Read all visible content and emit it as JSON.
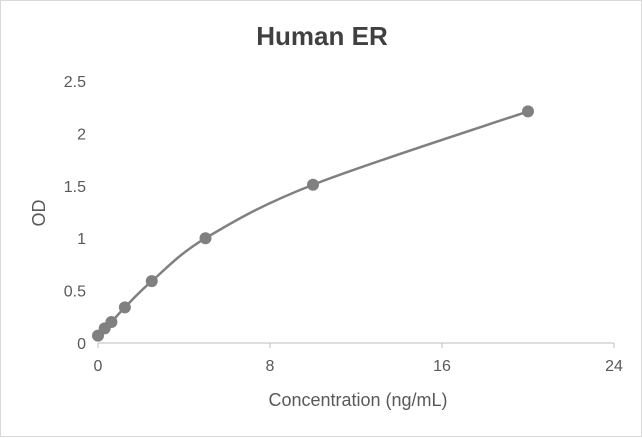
{
  "chart_data": {
    "type": "scatter",
    "title": "Human ER",
    "xlabel": "Concentration (ng/mL)",
    "ylabel": "OD",
    "xlim": [
      0,
      24
    ],
    "ylim": [
      0,
      2.5
    ],
    "x_ticks": [
      0,
      8,
      16,
      24
    ],
    "y_ticks": [
      0,
      0.5,
      1,
      1.5,
      2,
      2.5
    ],
    "x_tick_labels": [
      "0",
      "8",
      "16",
      "24"
    ],
    "y_tick_labels": [
      "0",
      "0.5",
      "1",
      "1.5",
      "2",
      "2.5"
    ],
    "grid": false,
    "legend": "none",
    "smooth_line": true,
    "series": [
      {
        "x": [
          0,
          0.3125,
          0.625,
          1.25,
          2.5,
          5,
          10,
          20
        ],
        "y": [
          0.07,
          0.14,
          0.2,
          0.34,
          0.59,
          1.0,
          1.51,
          2.21
        ],
        "color": "#808080"
      }
    ]
  }
}
